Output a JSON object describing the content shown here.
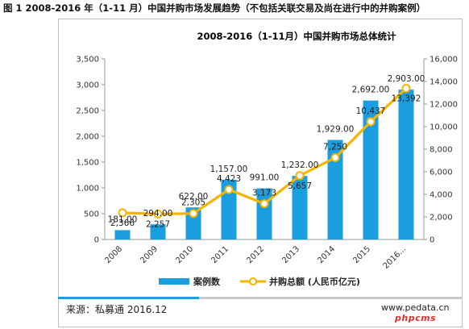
{
  "caption": "图 1 2008-2016 年（1-11 月）中国并购市场发展趋势（不包括关联交易及尚在进行中的并购案例）",
  "footer": {
    "source": "来源：私募通 2016.12",
    "site": "www.pedata.cn",
    "logo": "phpcms"
  },
  "colors": {
    "bar": "#1a9ee0",
    "line": "#f5b400",
    "marker_fill": "#ffffff"
  },
  "chart_data": {
    "type": "bar",
    "title": "2008-2016（1-11月）中国并购市场总体统计",
    "categories": [
      "2008",
      "2009",
      "2010",
      "2011",
      "2012",
      "2013",
      "2014",
      "2015",
      "2016..."
    ],
    "series": [
      {
        "name": "案例数",
        "type": "bar",
        "axis": "left",
        "values": [
          181,
          294,
          622,
          1157,
          991,
          1232,
          1929,
          2692,
          2903
        ],
        "labels": [
          "181.00",
          "294.00",
          "622.00",
          "1,157.00",
          "991.00",
          "1,232.00",
          "1,929.00",
          "2,692.00",
          "2,903.00"
        ]
      },
      {
        "name": "并购总额 (人民币亿元)",
        "type": "line",
        "axis": "right",
        "values": [
          2366,
          2257,
          2305,
          4423,
          3173,
          5657,
          7250,
          10437,
          13392
        ],
        "labels": [
          "2,366",
          "2,257",
          "2,305",
          "4,423",
          "3,173",
          "5,657",
          "7,250",
          "10,437",
          "13,392"
        ]
      }
    ],
    "y_left": {
      "min": 0,
      "max": 3500,
      "step": 500,
      "ticks": [
        "0",
        "500",
        "1,000",
        "1,500",
        "2,000",
        "2,500",
        "3,000",
        "3,500"
      ]
    },
    "y_right": {
      "min": 0,
      "max": 16000,
      "step": 2000,
      "ticks": [
        "0",
        "2,000",
        "4,000",
        "6,000",
        "8,000",
        "10,000",
        "12,000",
        "14,000",
        "16,000"
      ]
    },
    "grid": false,
    "legend_position": "bottom"
  }
}
